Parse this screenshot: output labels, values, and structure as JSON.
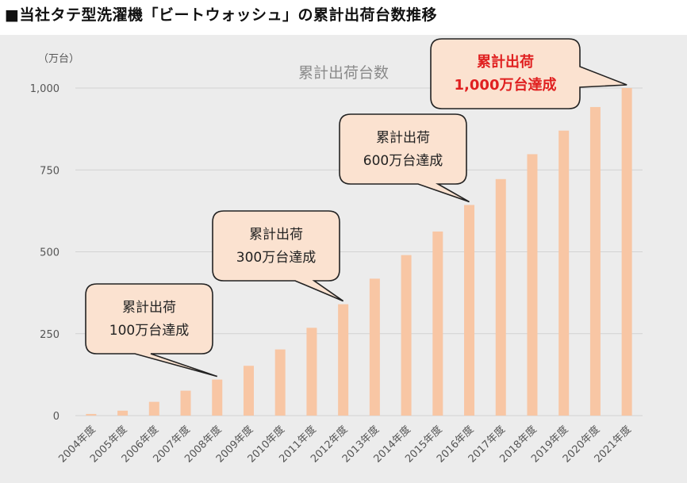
{
  "page_title": "■当社タテ型洗濯機「ビートウォッシュ」の累計出荷台数推移",
  "colors": {
    "background": "#ececec",
    "bar": "#f8c6a4",
    "callout_fill": "#fbe2d0",
    "callout_stroke": "#222222",
    "highlight_text": "#e02020"
  },
  "chart_data": {
    "type": "bar",
    "title": "累計出荷台数",
    "unit_label": "（万台）",
    "xlabel": "",
    "ylabel": "（万台）",
    "ylim": [
      0,
      1000
    ],
    "yticks": [
      0,
      250,
      500,
      750,
      1000
    ],
    "ytick_labels": [
      "0",
      "250",
      "500",
      "750",
      "1,000"
    ],
    "grid": true,
    "categories": [
      "2004年度",
      "2005年度",
      "2006年度",
      "2007年度",
      "2008年度",
      "2009年度",
      "2010年度",
      "2011年度",
      "2012年度",
      "2013年度",
      "2014年度",
      "2015年度",
      "2016年度",
      "2017年度",
      "2018年度",
      "2019年度",
      "2020年度",
      "2021年度"
    ],
    "values": [
      5,
      15,
      42,
      76,
      110,
      152,
      202,
      268,
      340,
      418,
      490,
      562,
      643,
      722,
      798,
      870,
      942,
      1000
    ],
    "annotations": [
      {
        "id": "100",
        "lines": [
          "累計出荷",
          "100万台達成"
        ],
        "target_index": 4,
        "highlight": false
      },
      {
        "id": "300",
        "lines": [
          "累計出荷",
          "300万台達成"
        ],
        "target_index": 8,
        "highlight": false
      },
      {
        "id": "600",
        "lines": [
          "累計出荷",
          "600万台達成"
        ],
        "target_index": 12,
        "highlight": false
      },
      {
        "id": "1000",
        "lines": [
          "累計出荷",
          "1,000万台達成"
        ],
        "target_index": 17,
        "highlight": true
      }
    ]
  }
}
